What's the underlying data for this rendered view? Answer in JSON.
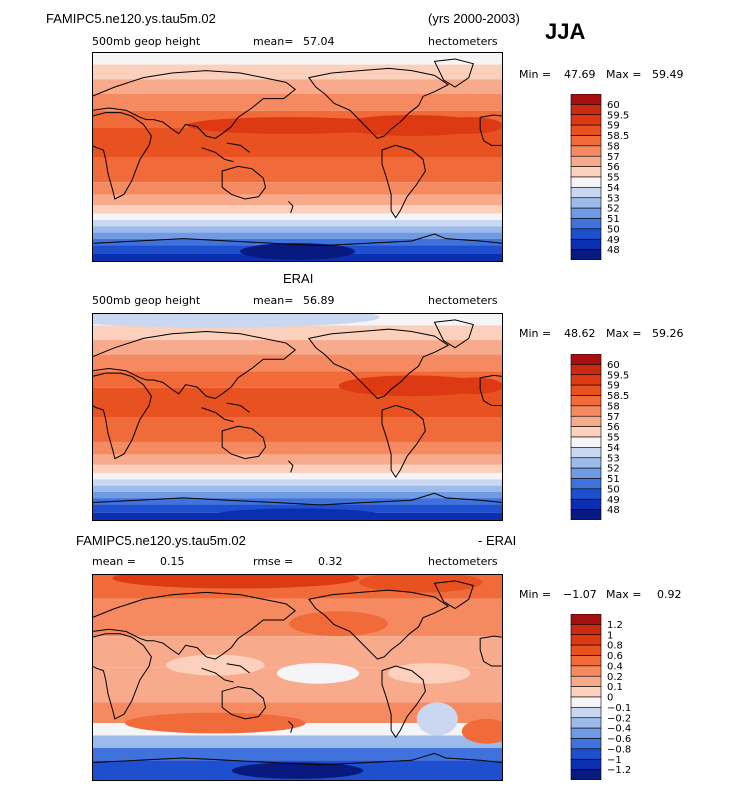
{
  "header": {
    "case_name": "FAMIPC5.ne120.ys.tau5m.02",
    "years": "(yrs 2000-2003)",
    "season": "JJA"
  },
  "panels": [
    {
      "title": "",
      "left_label": "500mb geop height",
      "center_label": "mean=",
      "center_value": "57.04",
      "units": "hectometers",
      "min_label": "Min =",
      "min_value": "47.69",
      "max_label": "Max =",
      "max_value": "59.49"
    },
    {
      "title": "ERAI",
      "left_label": "500mb geop height",
      "center_label": "mean=",
      "center_value": "56.89",
      "units": "hectometers",
      "min_label": "Min =",
      "min_value": "48.62",
      "max_label": "Max =",
      "max_value": "59.26"
    },
    {
      "title_left": "FAMIPC5.ne120.ys.tau5m.02",
      "title_right": "- ERAI",
      "left_label": "mean =",
      "left_value": "0.15",
      "center_label": "rmse =",
      "center_value": "0.32",
      "units": "hectometers",
      "min_label": "Min =",
      "min_value": "−1.07",
      "max_label": "Max =",
      "max_value": "0.92"
    }
  ],
  "chart_data": [
    {
      "type": "heatmap",
      "title": "500mb geop height",
      "units": "hectometers",
      "colorbar_levels": [
        "60",
        "59.5",
        "59",
        "58.5",
        "58",
        "57",
        "56",
        "55",
        "54",
        "53",
        "52",
        "51",
        "50",
        "49",
        "48"
      ],
      "colorbar_colors": [
        "#a50f0f",
        "#c92a10",
        "#dd3a14",
        "#e85220",
        "#f06a3a",
        "#f58a60",
        "#f8ab8c",
        "#fbd0bd",
        "#f5f5f8",
        "#c9d8f0",
        "#9dbbea",
        "#6f9ae4",
        "#3f73db",
        "#1d4fce",
        "#0b2fb0",
        "#081a80"
      ]
    },
    {
      "type": "heatmap",
      "title": "ERAI 500mb geop height",
      "units": "hectometers",
      "colorbar_levels": [
        "60",
        "59.5",
        "59",
        "58.5",
        "58",
        "57",
        "56",
        "55",
        "54",
        "53",
        "52",
        "51",
        "50",
        "49",
        "48"
      ],
      "colorbar_colors": [
        "#a50f0f",
        "#c92a10",
        "#dd3a14",
        "#e85220",
        "#f06a3a",
        "#f58a60",
        "#f8ab8c",
        "#fbd0bd",
        "#f5f5f8",
        "#c9d8f0",
        "#9dbbea",
        "#6f9ae4",
        "#3f73db",
        "#1d4fce",
        "#0b2fb0",
        "#081a80"
      ]
    },
    {
      "type": "heatmap",
      "title": "FAMIPC5.ne120.ys.tau5m.02 - ERAI",
      "units": "hectometers",
      "colorbar_levels": [
        "1.2",
        "1",
        "0.8",
        "0.6",
        "0.4",
        "0.2",
        "0.1",
        "0",
        "−0.1",
        "−0.2",
        "−0.4",
        "−0.6",
        "−0.8",
        "−1",
        "−1.2"
      ],
      "colorbar_colors": [
        "#a50f0f",
        "#c92a10",
        "#dd3a14",
        "#e85220",
        "#f06a3a",
        "#f58a60",
        "#f8ab8c",
        "#fbd0bd",
        "#f5f5f8",
        "#c9d8f0",
        "#9dbbea",
        "#6f9ae4",
        "#3f73db",
        "#1d4fce",
        "#0b2fb0",
        "#081a80"
      ]
    }
  ]
}
